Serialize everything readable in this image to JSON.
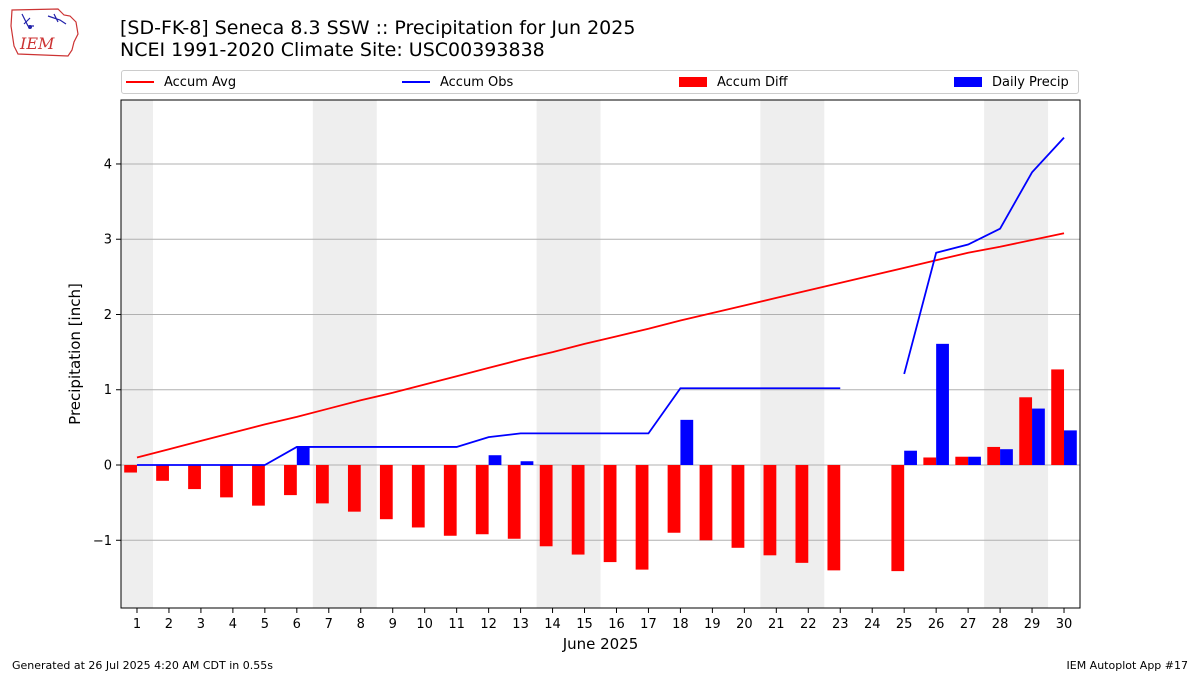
{
  "header": {
    "title_line1": "[SD-FK-8] Seneca 8.3 SSW :: Precipitation for Jun 2025",
    "title_line2": "NCEI 1991-2020 Climate Site: USC00393838",
    "logo_text": "IEM"
  },
  "footer": {
    "left": "Generated at 26 Jul 2025 4:20 AM CDT in 0.55s",
    "right": "IEM Autoplot App #17"
  },
  "colors": {
    "accum_avg": "#ff0000",
    "accum_obs": "#0000ff",
    "accum_diff": "#ff0000",
    "daily_precip": "#0000ff",
    "weekend_shade": "#eeeeee",
    "grid": "#b0b0b0"
  },
  "chart_data": {
    "type": "bar",
    "xlabel": "June 2025",
    "ylabel": "Precipitation [inch]",
    "xlim": [
      0.5,
      30.5
    ],
    "ylim": [
      -1.9,
      4.85
    ],
    "yticks": [
      -1,
      0,
      1,
      2,
      3,
      4
    ],
    "ytick_labels": [
      "−1",
      "0",
      "1",
      "2",
      "3",
      "4"
    ],
    "grid": "y",
    "legend_placement": "top, above plot",
    "days": [
      1,
      2,
      3,
      4,
      5,
      6,
      7,
      8,
      9,
      10,
      11,
      12,
      13,
      14,
      15,
      16,
      17,
      18,
      19,
      20,
      21,
      22,
      23,
      24,
      25,
      26,
      27,
      28,
      29,
      30
    ],
    "weekend_spans": [
      [
        0.5,
        1.5
      ],
      [
        6.5,
        8.5
      ],
      [
        13.5,
        15.5
      ],
      [
        20.5,
        22.5
      ],
      [
        27.5,
        29.5
      ]
    ],
    "series": [
      {
        "name": "Accum Avg",
        "kind": "line",
        "values": [
          0.1,
          0.21,
          0.32,
          0.43,
          0.54,
          0.64,
          0.75,
          0.86,
          0.96,
          1.07,
          1.18,
          1.29,
          1.4,
          1.5,
          1.61,
          1.71,
          1.81,
          1.92,
          2.02,
          2.12,
          2.22,
          2.32,
          2.42,
          2.52,
          2.62,
          2.72,
          2.82,
          2.9,
          2.99,
          3.08
        ]
      },
      {
        "name": "Accum Obs",
        "kind": "line",
        "values": [
          0.0,
          0.0,
          0.0,
          0.0,
          0.0,
          0.24,
          0.24,
          0.24,
          0.24,
          0.24,
          0.24,
          0.37,
          0.42,
          0.42,
          0.42,
          0.42,
          0.42,
          1.02,
          1.02,
          1.02,
          1.02,
          1.02,
          1.02,
          null,
          1.21,
          2.82,
          2.93,
          3.14,
          3.89,
          4.35
        ]
      },
      {
        "name": "Accum Diff",
        "kind": "bar",
        "values": [
          -0.1,
          -0.21,
          -0.32,
          -0.43,
          -0.54,
          -0.4,
          -0.51,
          -0.62,
          -0.72,
          -0.83,
          -0.94,
          -0.92,
          -0.98,
          -1.08,
          -1.19,
          -1.29,
          -1.39,
          -0.9,
          -1.0,
          -1.1,
          -1.2,
          -1.3,
          -1.4,
          null,
          -1.41,
          0.1,
          0.11,
          0.24,
          0.9,
          1.27
        ]
      },
      {
        "name": "Daily Precip",
        "kind": "bar",
        "values": [
          0,
          0,
          0,
          0,
          0,
          0.24,
          0,
          0,
          0,
          0,
          0,
          0.13,
          0.05,
          0,
          0,
          0,
          0,
          0.6,
          0,
          0,
          0,
          0,
          0,
          null,
          0.19,
          1.61,
          0.11,
          0.21,
          0.75,
          0.46
        ]
      }
    ]
  }
}
